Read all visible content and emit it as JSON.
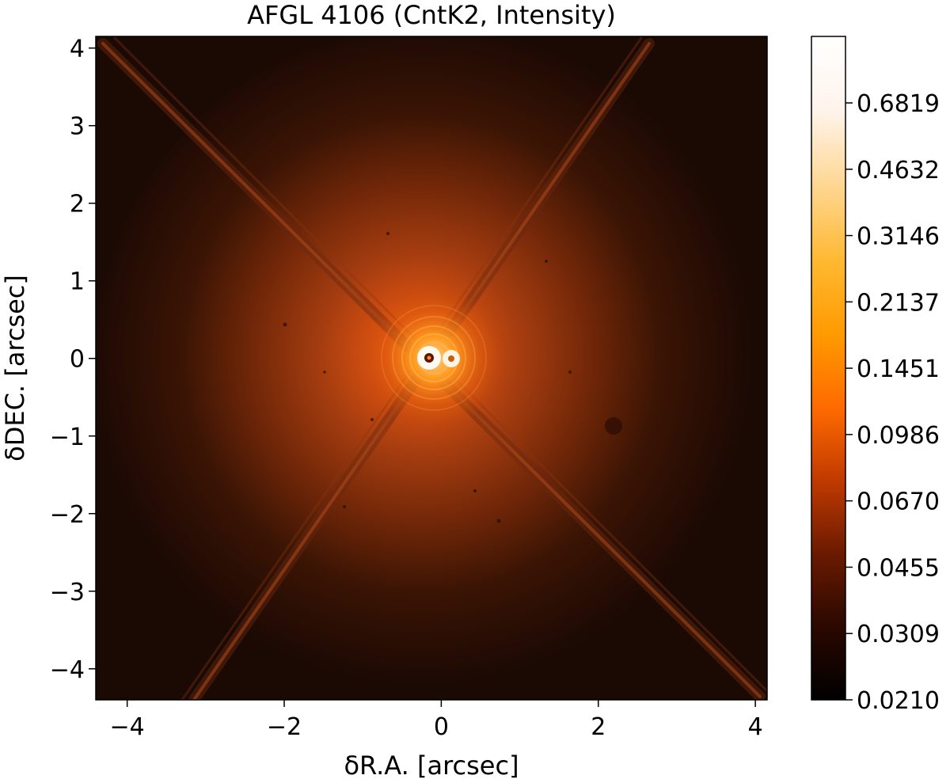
{
  "figure": {
    "title": "AFGL 4106 (CntK2, Intensity)",
    "xlabel": "δR.A. [arcsec]",
    "ylabel": "δDEC. [arcsec]",
    "x_axis": {
      "range": [
        -4.4,
        4.15
      ],
      "ticks": [
        -4,
        -2,
        0,
        2,
        4
      ],
      "tick_labels": [
        "−4",
        "−2",
        "0",
        "2",
        "4"
      ]
    },
    "y_axis": {
      "range": [
        -4.4,
        4.15
      ],
      "ticks": [
        4,
        3,
        2,
        1,
        0,
        -1,
        -2,
        -3,
        -4
      ],
      "tick_labels": [
        "4",
        "3",
        "2",
        "1",
        "0",
        "−1",
        "−2",
        "−3",
        "−4"
      ]
    },
    "colorbar": {
      "tick_labels": [
        "0.6819",
        "0.4632",
        "0.3146",
        "0.2137",
        "0.1451",
        "0.0986",
        "0.0670",
        "0.0455",
        "0.0309",
        "0.0210"
      ],
      "colors": [
        "#000000",
        "#2a0800",
        "#6a1a00",
        "#c03a00",
        "#ff6a00",
        "#ff9a00",
        "#ffb830",
        "#ffd896",
        "#fff4ec",
        "#ffffff"
      ]
    },
    "sources": [
      {
        "x": -0.1,
        "y": 0.0
      },
      {
        "x": 0.1,
        "y": -0.02
      }
    ]
  }
}
